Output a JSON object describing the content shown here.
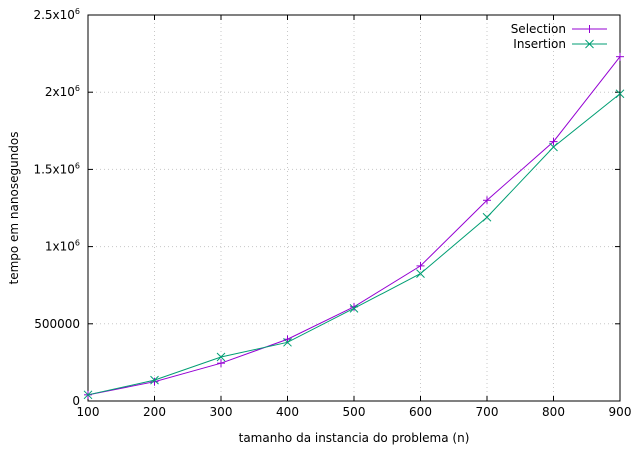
{
  "chart_data": {
    "type": "line",
    "title": "",
    "xlabel": "tamanho da instancia do problema (n)",
    "ylabel": "tempo em nanosegundos",
    "xlim": [
      100,
      900
    ],
    "ylim": [
      0,
      2500000
    ],
    "grid": true,
    "legend_position": "top-right",
    "x_ticks": [
      {
        "value": 100,
        "label": "100"
      },
      {
        "value": 200,
        "label": "200"
      },
      {
        "value": 300,
        "label": "300"
      },
      {
        "value": 400,
        "label": "400"
      },
      {
        "value": 500,
        "label": "500"
      },
      {
        "value": 600,
        "label": "600"
      },
      {
        "value": 700,
        "label": "700"
      },
      {
        "value": 800,
        "label": "800"
      },
      {
        "value": 900,
        "label": "900"
      }
    ],
    "y_ticks": [
      {
        "value": 0,
        "label": "0",
        "sup": ""
      },
      {
        "value": 500000,
        "label": "500000",
        "sup": ""
      },
      {
        "value": 1000000,
        "label": "1x10",
        "sup": "6"
      },
      {
        "value": 1500000,
        "label": "1.5x10",
        "sup": "6"
      },
      {
        "value": 2000000,
        "label": "2x10",
        "sup": "6"
      },
      {
        "value": 2500000,
        "label": "2.5x10",
        "sup": "6"
      }
    ],
    "x": [
      100,
      200,
      300,
      400,
      500,
      600,
      700,
      800,
      900
    ],
    "series": [
      {
        "name": "Selection",
        "marker": "plus",
        "color": "#9400d3",
        "values": [
          40000,
          125000,
          245000,
          400000,
          610000,
          875000,
          1300000,
          1680000,
          2230000
        ]
      },
      {
        "name": "Insertion",
        "marker": "x",
        "color": "#009e73",
        "values": [
          40000,
          135000,
          285000,
          380000,
          600000,
          825000,
          1190000,
          1645000,
          1990000
        ]
      }
    ]
  }
}
